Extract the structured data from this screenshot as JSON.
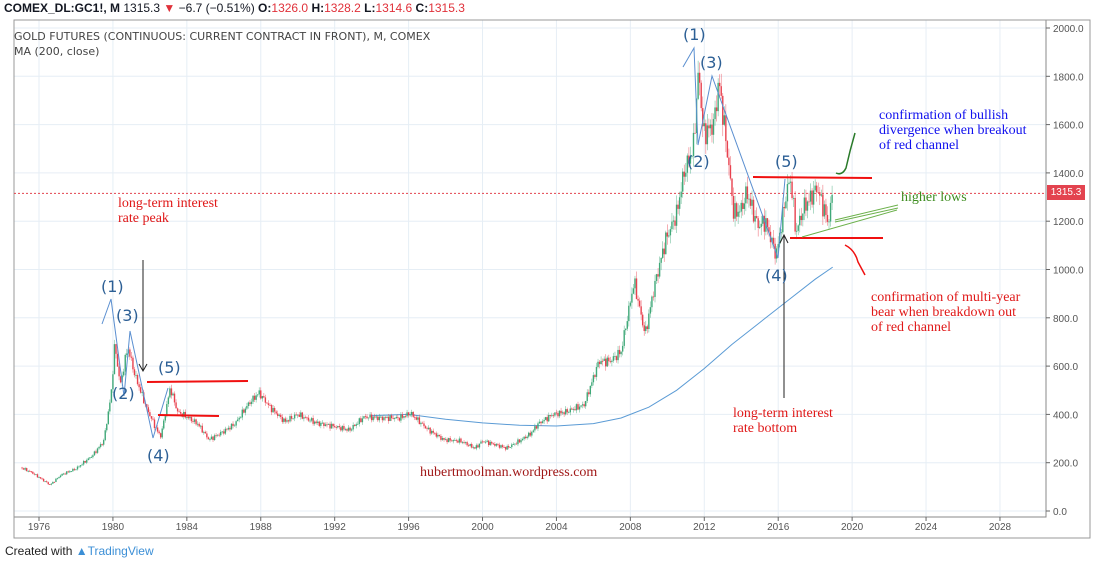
{
  "header": {
    "symbol": "COMEX_DL:GC1!, M",
    "last": "1315.3",
    "change": "−6.7 (−0.51%)",
    "open_label": "O:",
    "open": "1326.0",
    "high_label": "H:",
    "high": "1328.2",
    "low_label": "L:",
    "low": "1314.6",
    "close_label": "C:",
    "close": "1315.3"
  },
  "legend": {
    "title": "GOLD FUTURES (CONTINUOUS: CURRENT CONTRACT IN FRONT), M, COMEX",
    "indicator": "MA (200, close)"
  },
  "footer": {
    "created_with": "Created with",
    "brand": "TradingView"
  },
  "colors": {
    "up": "#3fa878",
    "down": "#e8414e",
    "ma": "#5b9bd5",
    "wave": "#2c5f95",
    "channel": "#f01010"
  },
  "annotations": {
    "rate_peak": "long-term interest\nrate peak",
    "rate_bottom": "long-term interest\nrate bottom",
    "watermark": "hubertmoolman.wordpress.com",
    "bullish": "confirmation of bullish\ndivergence when breakout\nof red channel",
    "higher_lows": "higher lows",
    "bear": "confirmation of multi-year\nbear when breakdown out\nof red channel",
    "waves_left": [
      "(1)",
      "(2)",
      "(3)",
      "(4)",
      "(5)"
    ],
    "waves_right": [
      "(1)",
      "(2)",
      "(3)",
      "(4)",
      "(5)"
    ]
  },
  "chart_data": {
    "type": "candlestick",
    "title": "GOLD FUTURES (CONTINUOUS: CURRENT CONTRACT IN FRONT), M, COMEX",
    "interval": "monthly",
    "ylim": [
      0,
      2000
    ],
    "xlim": [
      1974.2,
      2030.5
    ],
    "y_ticks": [
      "0.0",
      "200.0",
      "400.0",
      "600.0",
      "800.0",
      "1000.0",
      "1200.0",
      "1400.0",
      "1600.0",
      "1800.0",
      "2000.0"
    ],
    "x_ticks": [
      "1976",
      "1980",
      "1984",
      "1988",
      "1992",
      "1996",
      "2000",
      "2004",
      "2008",
      "2012",
      "2016",
      "2020",
      "2024",
      "2028"
    ],
    "last_price": 1315.3,
    "price_path": [
      [
        1975.0,
        180
      ],
      [
        1975.6,
        160
      ],
      [
        1976.6,
        108
      ],
      [
        1977.2,
        150
      ],
      [
        1978.0,
        175
      ],
      [
        1978.9,
        230
      ],
      [
        1979.5,
        290
      ],
      [
        1979.9,
        480
      ],
      [
        1980.1,
        690
      ],
      [
        1980.4,
        520
      ],
      [
        1980.8,
        680
      ],
      [
        1981.2,
        560
      ],
      [
        1981.8,
        430
      ],
      [
        1982.4,
        330
      ],
      [
        1982.6,
        310
      ],
      [
        1983.1,
        510
      ],
      [
        1983.5,
        410
      ],
      [
        1984.0,
        390
      ],
      [
        1984.6,
        360
      ],
      [
        1985.2,
        295
      ],
      [
        1986.0,
        330
      ],
      [
        1986.6,
        360
      ],
      [
        1987.3,
        440
      ],
      [
        1987.9,
        490
      ],
      [
        1988.5,
        430
      ],
      [
        1989.3,
        370
      ],
      [
        1990.0,
        400
      ],
      [
        1991.0,
        365
      ],
      [
        1992.0,
        350
      ],
      [
        1992.8,
        335
      ],
      [
        1993.6,
        390
      ],
      [
        1994.5,
        385
      ],
      [
        1995.5,
        385
      ],
      [
        1996.1,
        405
      ],
      [
        1997.0,
        340
      ],
      [
        1997.9,
        295
      ],
      [
        1998.8,
        290
      ],
      [
        1999.6,
        260
      ],
      [
        2000.0,
        290
      ],
      [
        2000.9,
        270
      ],
      [
        2001.3,
        260
      ],
      [
        2002.0,
        290
      ],
      [
        2002.6,
        320
      ],
      [
        2003.0,
        360
      ],
      [
        2003.8,
        400
      ],
      [
        2004.5,
        410
      ],
      [
        2005.5,
        440
      ],
      [
        2006.3,
        620
      ],
      [
        2006.9,
        620
      ],
      [
        2007.5,
        660
      ],
      [
        2008.2,
        950
      ],
      [
        2008.8,
        730
      ],
      [
        2009.3,
        930
      ],
      [
        2009.9,
        1120
      ],
      [
        2010.5,
        1230
      ],
      [
        2010.9,
        1400
      ],
      [
        2011.4,
        1500
      ],
      [
        2011.7,
        1830
      ],
      [
        2011.95,
        1560
      ],
      [
        2012.5,
        1600
      ],
      [
        2012.8,
        1780
      ],
      [
        2013.3,
        1450
      ],
      [
        2013.6,
        1230
      ],
      [
        2014.0,
        1250
      ],
      [
        2014.3,
        1320
      ],
      [
        2014.9,
        1180
      ],
      [
        2015.3,
        1200
      ],
      [
        2015.9,
        1060
      ],
      [
        2016.5,
        1340
      ],
      [
        2016.7,
        1370
      ],
      [
        2016.95,
        1150
      ],
      [
        2017.4,
        1260
      ],
      [
        2017.7,
        1290
      ],
      [
        2018.1,
        1340
      ],
      [
        2018.6,
        1220
      ],
      [
        2018.7,
        1190
      ],
      [
        2018.95,
        1315.3
      ]
    ],
    "ma_200": [
      [
        1994.0,
        395
      ],
      [
        1996.0,
        400
      ],
      [
        1998.0,
        380
      ],
      [
        2000.0,
        365
      ],
      [
        2002.0,
        355
      ],
      [
        2004.0,
        352
      ],
      [
        2006.0,
        362
      ],
      [
        2007.5,
        385
      ],
      [
        2009.0,
        430
      ],
      [
        2010.5,
        500
      ],
      [
        2012.0,
        590
      ],
      [
        2013.5,
        690
      ],
      [
        2015.0,
        780
      ],
      [
        2016.5,
        870
      ],
      [
        2018.0,
        960
      ],
      [
        2018.95,
        1010
      ]
    ]
  }
}
